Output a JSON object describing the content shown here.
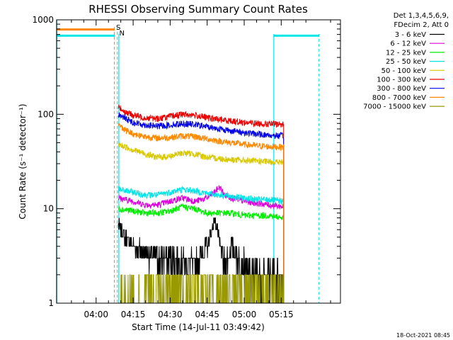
{
  "chart_data": {
    "type": "line",
    "title": "RHESSI Observing Summary Count Rates",
    "xlabel": "Start Time (14-Jul-11 03:49:42)",
    "ylabel": "Count Rate (s⁻¹ detector⁻¹)",
    "yscale": "log",
    "ylim": [
      1,
      1000
    ],
    "xlim_minutes": [
      -16,
      99
    ],
    "x_ticks": [
      {
        "min": 0,
        "label": "04:00"
      },
      {
        "min": 15,
        "label": "04:15"
      },
      {
        "min": 30,
        "label": "04:30"
      },
      {
        "min": 45,
        "label": "04:45"
      },
      {
        "min": 60,
        "label": "05:00"
      },
      {
        "min": 75,
        "label": "05:15"
      }
    ],
    "y_ticks": [
      {
        "value": 1,
        "label": "1"
      },
      {
        "value": 10,
        "label": "10"
      },
      {
        "value": 100,
        "label": "100"
      },
      {
        "value": 1000,
        "label": "1000"
      }
    ],
    "legend_header": [
      "Det 1,3,4,5,6,9,",
      "FDecim 2, Att 0"
    ],
    "legend_position": "right",
    "series": [
      {
        "name": "3 - 6 keV",
        "color": "#000000",
        "x": [
          9,
          10,
          12,
          15,
          20,
          25,
          30,
          35,
          40,
          45,
          47,
          48,
          49,
          50,
          52,
          55,
          58,
          60,
          62,
          65,
          70,
          73,
          75,
          76
        ],
        "y": [
          7,
          6,
          5,
          4,
          3.5,
          3,
          3,
          3,
          2.5,
          4,
          6,
          8,
          6,
          4,
          2.5,
          4,
          3,
          2.5,
          2,
          2,
          2,
          2,
          2,
          2
        ]
      },
      {
        "name": "6 - 12 keV",
        "color": "#dd00dd",
        "x": [
          9,
          15,
          20,
          25,
          30,
          35,
          40,
          45,
          48,
          50,
          52,
          55,
          60,
          65,
          70,
          76
        ],
        "y": [
          13,
          12,
          11,
          11,
          12,
          13,
          12,
          13,
          15,
          17,
          14,
          13,
          12,
          11.5,
          11,
          10.5
        ]
      },
      {
        "name": "12 - 25 keV",
        "color": "#00ee00",
        "x": [
          9,
          15,
          20,
          25,
          30,
          35,
          40,
          45,
          50,
          55,
          60,
          65,
          70,
          76
        ],
        "y": [
          10,
          9.5,
          9,
          9,
          9.5,
          10.5,
          10,
          9,
          9,
          9,
          8.5,
          8.5,
          8.5,
          8
        ]
      },
      {
        "name": "25 - 50 keV",
        "color": "#00e5e5",
        "x": [
          9,
          15,
          20,
          25,
          30,
          35,
          40,
          45,
          50,
          55,
          60,
          65,
          70,
          76
        ],
        "y": [
          16,
          15,
          14,
          14,
          15,
          16,
          15.5,
          14.5,
          14,
          13.5,
          13,
          12.5,
          12.5,
          12
        ]
      },
      {
        "name": "50 - 100 keV",
        "color": "#d8c800",
        "x": [
          9,
          15,
          20,
          25,
          30,
          35,
          40,
          45,
          50,
          55,
          60,
          65,
          70,
          76
        ],
        "y": [
          48,
          42,
          38,
          35,
          36,
          39,
          38,
          35,
          34,
          33,
          32.5,
          32,
          31.5,
          31
        ]
      },
      {
        "name": "100 - 300 keV",
        "color": "#ee0000",
        "x": [
          9,
          12,
          15,
          20,
          25,
          30,
          35,
          40,
          45,
          50,
          55,
          60,
          65,
          70,
          76
        ],
        "y": [
          120,
          105,
          98,
          92,
          90,
          95,
          100,
          98,
          92,
          88,
          85,
          82,
          80,
          79,
          78
        ]
      },
      {
        "name": "300 - 800 keV",
        "color": "#0000ee",
        "x": [
          9,
          12,
          15,
          20,
          25,
          30,
          35,
          40,
          45,
          50,
          55,
          60,
          65,
          70,
          76
        ],
        "y": [
          100,
          90,
          82,
          77,
          75,
          77,
          80,
          78,
          74,
          70,
          67,
          64,
          62,
          60,
          59
        ]
      },
      {
        "name": "800 - 7000 keV",
        "color": "#ff8800",
        "x": [
          9,
          12,
          15,
          20,
          25,
          30,
          35,
          40,
          45,
          50,
          55,
          60,
          65,
          70,
          76
        ],
        "y": [
          78,
          68,
          62,
          58,
          56,
          57,
          59,
          58,
          55,
          52,
          50,
          48,
          46.5,
          45.5,
          45
        ]
      },
      {
        "name": "7000 - 15000 keV",
        "color": "#999900",
        "x": [
          9,
          15,
          20,
          25,
          30,
          35,
          40,
          45,
          50,
          55,
          60,
          65,
          70,
          76
        ],
        "y": [
          2,
          1,
          1,
          2,
          2,
          1,
          2,
          2,
          1,
          2,
          1,
          2,
          1,
          2
        ]
      }
    ],
    "annotations": [
      {
        "text": "S",
        "color": "#ff8800",
        "x_min": 7.5
      },
      {
        "text": "N",
        "color": "#00e5e5",
        "x_min": 8.8
      }
    ]
  },
  "footer_date": "18-Oct-2021 08:45"
}
